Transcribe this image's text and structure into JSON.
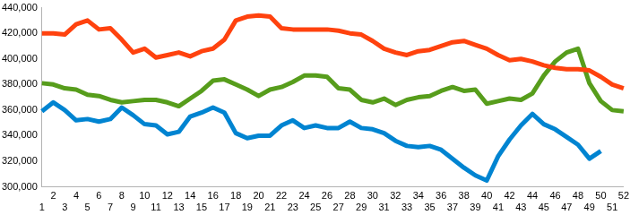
{
  "chart_data": {
    "type": "line",
    "categories": [
      "1",
      "2",
      "3",
      "4",
      "5",
      "6",
      "7",
      "8",
      "9",
      "10",
      "11",
      "12",
      "13",
      "14",
      "15",
      "16",
      "17",
      "18",
      "19",
      "20",
      "21",
      "22",
      "23",
      "24",
      "25",
      "26",
      "27",
      "28",
      "29",
      "30",
      "31",
      "32",
      "33",
      "34",
      "35",
      "36",
      "37",
      "38",
      "39",
      "40",
      "41",
      "42",
      "43",
      "44",
      "45",
      "46",
      "47",
      "48",
      "49",
      "50",
      "51",
      "52"
    ],
    "series": [
      {
        "color": "#ff420e",
        "values": [
          420000,
          420000,
          419000,
          427000,
          430000,
          423000,
          424000,
          415000,
          405000,
          408000,
          401000,
          403000,
          405000,
          402000,
          406000,
          408000,
          415000,
          430000,
          433000,
          434000,
          433000,
          424000,
          423000,
          423000,
          423000,
          423000,
          422000,
          420000,
          419000,
          414000,
          408000,
          405000,
          403000,
          406000,
          407000,
          410000,
          413000,
          414000,
          411000,
          408000,
          403000,
          399000,
          400000,
          398000,
          395000,
          393000,
          392000,
          392000,
          391000,
          386000,
          380000,
          377000
        ]
      },
      {
        "color": "#579d1c",
        "values": [
          381000,
          380000,
          377000,
          376000,
          372000,
          371000,
          368000,
          366000,
          367000,
          368000,
          368000,
          366000,
          363000,
          369000,
          375000,
          383000,
          384000,
          380000,
          376000,
          371000,
          376000,
          378000,
          382000,
          387000,
          387000,
          386000,
          377000,
          376000,
          368000,
          366000,
          369000,
          364000,
          368000,
          370000,
          371000,
          375000,
          378000,
          375000,
          376000,
          365000,
          367000,
          369000,
          368000,
          373000,
          387000,
          398000,
          405000,
          408000,
          381000,
          367000,
          360000,
          359000
        ]
      },
      {
        "color": "#0084d1",
        "values": [
          359000,
          366000,
          360000,
          352000,
          353000,
          351000,
          353000,
          362000,
          356000,
          349000,
          348000,
          341000,
          343000,
          355000,
          358000,
          362000,
          358000,
          342000,
          338000,
          340000,
          340000,
          348000,
          352000,
          346000,
          348000,
          346000,
          346000,
          351000,
          346000,
          345000,
          342000,
          336000,
          332000,
          331000,
          332000,
          329000,
          322000,
          315000,
          309000,
          305000,
          324000,
          337000,
          348000,
          357000,
          349000,
          345000,
          339000,
          333000,
          322000,
          328000,
          null,
          null
        ]
      }
    ],
    "ylim": [
      300000,
      440000
    ],
    "yticks": [
      {
        "value": 300000,
        "label": "300,000"
      },
      {
        "value": 320000,
        "label": "320,000"
      },
      {
        "value": 340000,
        "label": "340,000"
      },
      {
        "value": 360000,
        "label": "360,000"
      },
      {
        "value": 380000,
        "label": "380,000"
      },
      {
        "value": 400000,
        "label": "400,000"
      },
      {
        "value": 420000,
        "label": "420,000"
      },
      {
        "value": 440000,
        "label": "440,000"
      }
    ],
    "grid": false
  }
}
